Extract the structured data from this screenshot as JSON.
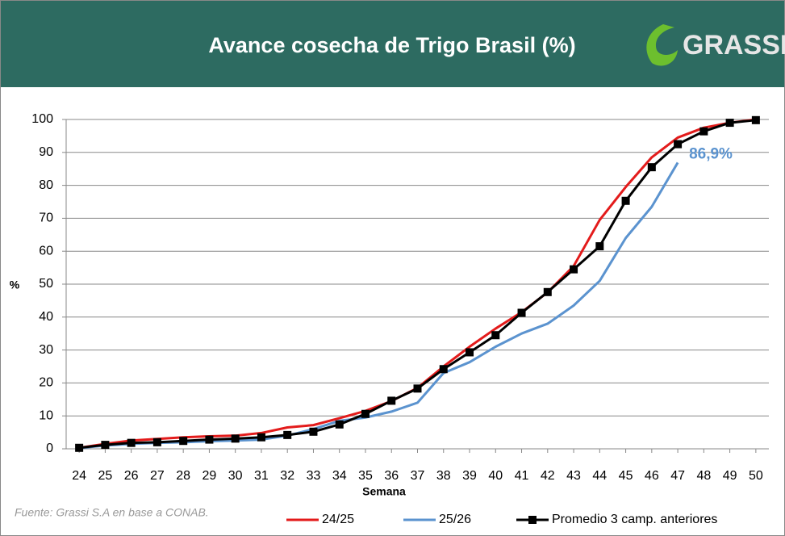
{
  "logo": "GRASSI",
  "chart_data": {
    "type": "line",
    "title": "Avance cosecha de Trigo Brasil (%)",
    "ylabel": "%",
    "xlabel": "Semana",
    "source": "Fuente: Grassi S.A en base a CONAB.",
    "annotations": [
      "86,9%"
    ],
    "x": [
      24,
      25,
      26,
      27,
      28,
      29,
      30,
      31,
      32,
      33,
      34,
      35,
      36,
      37,
      38,
      39,
      40,
      41,
      42,
      43,
      44,
      45,
      46,
      47,
      48,
      49,
      50
    ],
    "xlim": [
      23.5,
      50.5
    ],
    "xticks": [
      24,
      25,
      26,
      27,
      28,
      29,
      30,
      31,
      32,
      33,
      34,
      35,
      36,
      37,
      38,
      39,
      40,
      41,
      42,
      43,
      44,
      45,
      46,
      47,
      48,
      49,
      50
    ],
    "ylim": [
      0,
      100
    ],
    "yticks": [
      0,
      10,
      20,
      30,
      40,
      50,
      60,
      70,
      80,
      90,
      100
    ],
    "grid": true,
    "legend": "bottom",
    "series": [
      {
        "name": "24/25",
        "color": "#e31b1b",
        "values": [
          0.3,
          1.5,
          2.5,
          3,
          3.5,
          3.8,
          4,
          4.8,
          6.5,
          7.2,
          9.3,
          11.5,
          14.5,
          18.5,
          25,
          31,
          36.5,
          41.5,
          47.5,
          55.5,
          69.5,
          79.5,
          88.5,
          94.5,
          97.5,
          99,
          100
        ]
      },
      {
        "name": "25/26",
        "color": "#5b93cf",
        "values": [
          0.2,
          1,
          1.5,
          1.8,
          2,
          2.3,
          2.5,
          2.8,
          4,
          6,
          8.5,
          9.5,
          11.3,
          14,
          23,
          26.3,
          31,
          35,
          38,
          43.5,
          51,
          64,
          73.5,
          86.9,
          null,
          null,
          null
        ]
      },
      {
        "name": "Promedio 3 camp. anteriores",
        "color": "#000000",
        "marker": "square",
        "values": [
          0.3,
          1.2,
          1.8,
          2,
          2.4,
          2.8,
          3.1,
          3.5,
          4.2,
          5.2,
          7.4,
          10.6,
          14.6,
          18.3,
          24.2,
          29.3,
          34.5,
          41.3,
          47.6,
          54.5,
          61.5,
          75.3,
          85.5,
          92.5,
          96.4,
          99,
          99.8
        ]
      }
    ]
  }
}
